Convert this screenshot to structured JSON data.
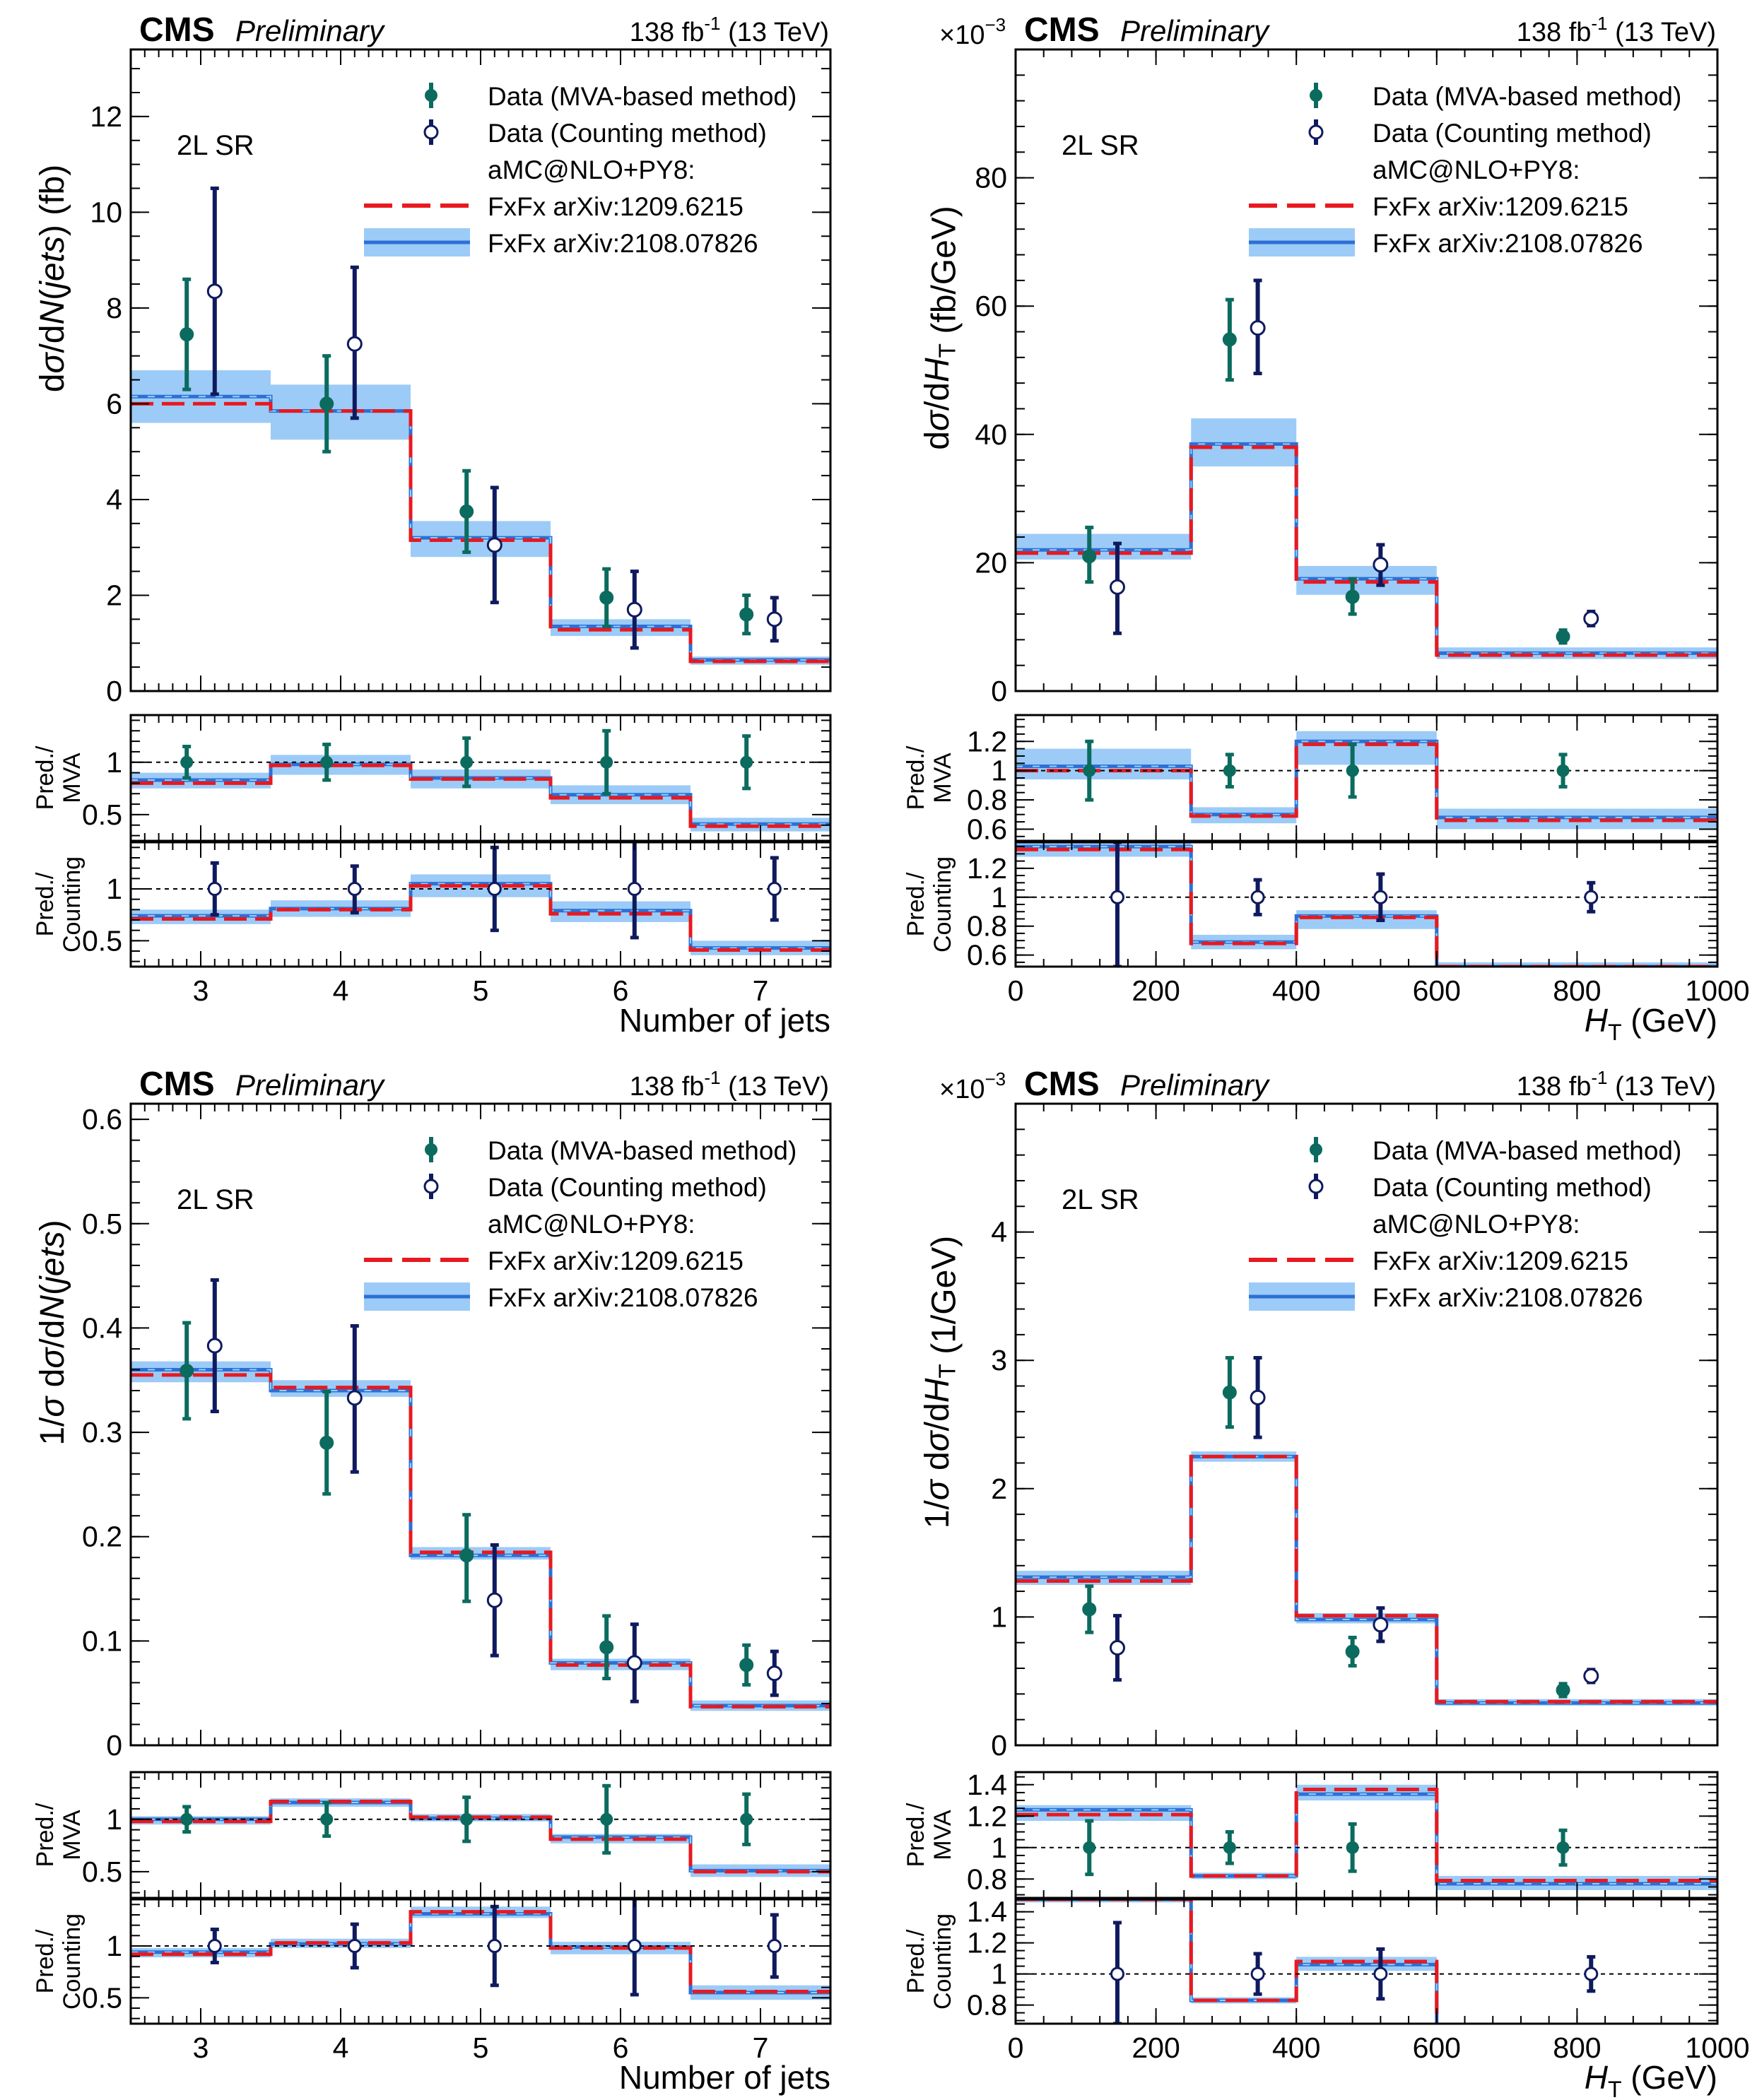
{
  "header": {
    "cms": "CMS",
    "preliminary": "Preliminary",
    "lumi": "138 fb",
    "lumi_sup": "-1",
    "energy": " (13 TeV)",
    "region": "2L SR"
  },
  "legend": {
    "data_mva": "Data (MVA-based method)",
    "data_counting": "Data (Counting method)",
    "generator": "aMC@NLO+PY8:",
    "pred1": "FxFx arXiv:1209.6215",
    "pred2": "FxFx arXiv:2108.07826"
  },
  "ratio_labels": {
    "pred": "Pred./",
    "mva": "MVA",
    "counting": "Counting"
  },
  "colors": {
    "mva": "#0b6b5e",
    "counting": "#0f1a5e",
    "pred1": "#e8191f",
    "pred2": "#2d6fd4",
    "band": "#9ccbf7"
  },
  "chart_data": [
    {
      "type": "histogram-with-ratios",
      "xlabel": "Number of jets",
      "ylabel": "dσ/dN(jets) (fb)",
      "ymult": "",
      "xlim": [
        2.5,
        7.5
      ],
      "ylim": [
        0,
        13.4
      ],
      "xticks": [
        "3",
        "4",
        "5",
        "6",
        "7"
      ],
      "yticks": [
        "0",
        "2",
        "4",
        "6",
        "8",
        "10",
        "12"
      ],
      "bin_edges": [
        2.5,
        3.5,
        4.5,
        5.5,
        6.5,
        7.5
      ],
      "pred1": [
        6.0,
        5.85,
        3.15,
        1.28,
        0.62
      ],
      "pred2": [
        6.15,
        5.85,
        3.2,
        1.35,
        0.65
      ],
      "band": [
        [
          5.6,
          6.7
        ],
        [
          5.25,
          6.4
        ],
        [
          2.8,
          3.55
        ],
        [
          1.15,
          1.5
        ],
        [
          0.55,
          0.72
        ]
      ],
      "data_mva": {
        "x": [
          2.9,
          3.9,
          4.9,
          5.9,
          6.9
        ],
        "y": [
          7.45,
          6.0,
          3.75,
          1.95,
          1.6
        ],
        "lo": [
          6.3,
          5.0,
          2.9,
          1.35,
          1.2
        ],
        "hi": [
          8.6,
          7.0,
          4.6,
          2.55,
          2.0
        ]
      },
      "data_counting": {
        "x": [
          3.1,
          4.1,
          5.1,
          6.1,
          7.1
        ],
        "y": [
          8.35,
          7.25,
          3.05,
          1.7,
          1.5
        ],
        "lo": [
          6.2,
          5.7,
          1.85,
          0.9,
          1.05
        ],
        "hi": [
          10.5,
          8.85,
          4.25,
          2.5,
          1.95
        ]
      },
      "ratio_mva": {
        "ylim": [
          0.25,
          1.45
        ],
        "yticks": [
          "0.5",
          "1"
        ],
        "pred1": [
          0.8,
          0.97,
          0.84,
          0.66,
          0.39
        ],
        "pred2": [
          0.83,
          0.98,
          0.85,
          0.69,
          0.41
        ],
        "band": [
          [
            0.75,
            0.9
          ],
          [
            0.88,
            1.07
          ],
          [
            0.75,
            0.93
          ],
          [
            0.6,
            0.78
          ],
          [
            0.34,
            0.47
          ]
        ],
        "data": {
          "x": [
            2.9,
            3.9,
            4.9,
            5.9,
            6.9
          ],
          "lo": [
            0.85,
            0.83,
            0.77,
            0.7,
            0.75
          ],
          "hi": [
            1.15,
            1.17,
            1.23,
            1.3,
            1.25
          ]
        }
      },
      "ratio_counting": {
        "ylim": [
          0.25,
          1.45
        ],
        "yticks": [
          "0.5",
          "1"
        ],
        "pred1": [
          0.71,
          0.8,
          1.03,
          0.76,
          0.41
        ],
        "pred2": [
          0.74,
          0.81,
          1.05,
          0.79,
          0.43
        ],
        "band": [
          [
            0.66,
            0.8
          ],
          [
            0.73,
            0.89
          ],
          [
            0.92,
            1.14
          ],
          [
            0.68,
            0.88
          ],
          [
            0.36,
            0.5
          ]
        ],
        "data": {
          "x": [
            3.1,
            4.1,
            5.1,
            6.1,
            7.1
          ],
          "lo": [
            0.75,
            0.77,
            0.6,
            0.53,
            0.7
          ],
          "hi": [
            1.25,
            1.22,
            1.4,
            1.47,
            1.3
          ]
        }
      }
    },
    {
      "type": "histogram-with-ratios",
      "xlabel": "H_T (GeV)",
      "ylabel": "dσ/dH_T (fb/GeV)",
      "ymult": "×10⁻³",
      "xlim": [
        0,
        1000
      ],
      "ylim": [
        0,
        100
      ],
      "xticks": [
        "0",
        "200",
        "400",
        "600",
        "800",
        "1000"
      ],
      "yticks": [
        "0",
        "20",
        "40",
        "60",
        "80"
      ],
      "bin_edges": [
        0,
        250,
        400,
        600,
        1000
      ],
      "pred1": [
        21.5,
        38.0,
        17.0,
        5.6
      ],
      "pred2": [
        22.0,
        38.5,
        17.5,
        5.9
      ],
      "band": [
        [
          20.5,
          24.5
        ],
        [
          35.0,
          42.5
        ],
        [
          15.0,
          19.5
        ],
        [
          5.0,
          6.8
        ]
      ],
      "data_mva": {
        "x": [
          105,
          305,
          480,
          780
        ],
        "y": [
          21.0,
          54.8,
          14.7,
          8.5
        ],
        "lo": [
          17.0,
          48.5,
          12.0,
          7.5
        ],
        "hi": [
          25.5,
          61.0,
          17.5,
          9.5
        ]
      },
      "data_counting": {
        "x": [
          145,
          345,
          520,
          820
        ],
        "y": [
          16.2,
          56.6,
          19.7,
          11.3
        ],
        "lo": [
          9.0,
          49.5,
          16.5,
          10.2
        ],
        "hi": [
          23.0,
          64.0,
          22.8,
          12.4
        ]
      },
      "ratio_mva": {
        "ylim": [
          0.52,
          1.38
        ],
        "yticks": [
          "0.6",
          "0.8",
          "1",
          "1.2"
        ],
        "pred1": [
          1.0,
          0.69,
          1.18,
          0.66
        ],
        "pred2": [
          1.03,
          0.7,
          1.2,
          0.68
        ],
        "band": [
          [
            0.94,
            1.15
          ],
          [
            0.64,
            0.75
          ],
          [
            1.04,
            1.27
          ],
          [
            0.6,
            0.74
          ]
        ],
        "data": {
          "x": [
            105,
            305,
            480,
            780
          ],
          "lo": [
            0.8,
            0.89,
            0.82,
            0.89
          ],
          "hi": [
            1.2,
            1.11,
            1.18,
            1.11
          ]
        }
      },
      "ratio_counting": {
        "ylim": [
          0.52,
          1.38
        ],
        "yticks": [
          "0.6",
          "0.8",
          "1",
          "1.2"
        ],
        "pred1": [
          1.33,
          0.68,
          0.86,
          0.52
        ],
        "pred2": [
          1.35,
          0.69,
          0.87,
          0.52
        ],
        "band": [
          [
            1.28,
            1.38
          ],
          [
            0.64,
            0.74
          ],
          [
            0.78,
            0.91
          ],
          [
            0.52,
            0.55
          ]
        ],
        "data": {
          "x": [
            145,
            345,
            520,
            820
          ],
          "lo": [
            0.52,
            0.88,
            0.84,
            0.9
          ],
          "hi": [
            1.38,
            1.12,
            1.16,
            1.1
          ]
        }
      }
    },
    {
      "type": "histogram-with-ratios",
      "xlabel": "Number of jets",
      "ylabel": "1/σ dσ/dN(jets)",
      "ymult": "",
      "xlim": [
        2.5,
        7.5
      ],
      "ylim": [
        0,
        0.615
      ],
      "xticks": [
        "3",
        "4",
        "5",
        "6",
        "7"
      ],
      "yticks": [
        "0",
        "0.1",
        "0.2",
        "0.3",
        "0.4",
        "0.5",
        "0.6"
      ],
      "bin_edges": [
        2.5,
        3.5,
        4.5,
        5.5,
        6.5,
        7.5
      ],
      "pred1": [
        0.355,
        0.343,
        0.185,
        0.077,
        0.037
      ],
      "pred2": [
        0.36,
        0.34,
        0.182,
        0.079,
        0.038
      ],
      "band": [
        [
          0.348,
          0.368
        ],
        [
          0.334,
          0.35
        ],
        [
          0.178,
          0.19
        ],
        [
          0.072,
          0.083
        ],
        [
          0.033,
          0.043
        ]
      ],
      "data_mva": {
        "x": [
          2.9,
          3.9,
          4.9,
          5.9,
          6.9
        ],
        "y": [
          0.359,
          0.29,
          0.182,
          0.094,
          0.077
        ],
        "lo": [
          0.313,
          0.241,
          0.138,
          0.064,
          0.058
        ],
        "hi": [
          0.405,
          0.339,
          0.221,
          0.124,
          0.096
        ]
      },
      "data_counting": {
        "x": [
          3.1,
          4.1,
          5.1,
          6.1,
          7.1
        ],
        "y": [
          0.383,
          0.333,
          0.139,
          0.079,
          0.069
        ],
        "lo": [
          0.32,
          0.262,
          0.086,
          0.042,
          0.048
        ],
        "hi": [
          0.446,
          0.402,
          0.192,
          0.116,
          0.09
        ]
      },
      "ratio_mva": {
        "ylim": [
          0.25,
          1.45
        ],
        "yticks": [
          "0.5",
          "1"
        ],
        "pred1": [
          0.98,
          1.17,
          1.02,
          0.81,
          0.5
        ],
        "pred2": [
          1.0,
          1.16,
          1.01,
          0.83,
          0.51
        ],
        "band": [
          [
            0.95,
            1.03
          ],
          [
            1.12,
            1.2
          ],
          [
            0.98,
            1.05
          ],
          [
            0.77,
            0.86
          ],
          [
            0.45,
            0.57
          ]
        ],
        "data": {
          "x": [
            2.9,
            3.9,
            4.9,
            5.9,
            6.9
          ],
          "lo": [
            0.88,
            0.84,
            0.79,
            0.68,
            0.76
          ],
          "hi": [
            1.12,
            1.16,
            1.21,
            1.32,
            1.24
          ]
        }
      },
      "ratio_counting": {
        "ylim": [
          0.25,
          1.45
        ],
        "yticks": [
          "0.5",
          "1"
        ],
        "pred1": [
          0.92,
          1.03,
          1.33,
          0.98,
          0.56
        ],
        "pred2": [
          0.94,
          1.02,
          1.31,
          0.99,
          0.55
        ],
        "band": [
          [
            0.89,
            0.98
          ],
          [
            0.98,
            1.07
          ],
          [
            1.27,
            1.38
          ],
          [
            0.92,
            1.04
          ],
          [
            0.48,
            0.62
          ]
        ],
        "data": {
          "x": [
            3.1,
            4.1,
            5.1,
            6.1,
            7.1
          ],
          "lo": [
            0.84,
            0.79,
            0.62,
            0.53,
            0.7
          ],
          "hi": [
            1.16,
            1.21,
            1.38,
            1.47,
            1.3
          ]
        }
      }
    },
    {
      "type": "histogram-with-ratios",
      "xlabel": "H_T (GeV)",
      "ylabel": "1/σ dσ/dH_T (1/GeV)",
      "ymult": "×10⁻³",
      "xlim": [
        0,
        1000
      ],
      "ylim": [
        0,
        5.0
      ],
      "xticks": [
        "0",
        "200",
        "400",
        "600",
        "800",
        "1000"
      ],
      "yticks": [
        "0",
        "1",
        "2",
        "3",
        "4"
      ],
      "bin_edges": [
        0,
        250,
        400,
        600,
        1000
      ],
      "pred1": [
        1.28,
        2.25,
        1.01,
        0.34
      ],
      "pred2": [
        1.31,
        2.25,
        0.98,
        0.33
      ],
      "band": [
        [
          1.25,
          1.36
        ],
        [
          2.21,
          2.29
        ],
        [
          0.95,
          1.03
        ],
        [
          0.31,
          0.36
        ]
      ],
      "data_mva": {
        "x": [
          105,
          305,
          480,
          780
        ],
        "y": [
          1.06,
          2.75,
          0.73,
          0.43
        ],
        "lo": [
          0.88,
          2.48,
          0.62,
          0.38
        ],
        "hi": [
          1.24,
          3.02,
          0.84,
          0.48
        ]
      },
      "data_counting": {
        "x": [
          145,
          345,
          520,
          820
        ],
        "y": [
          0.76,
          2.71,
          0.94,
          0.54
        ],
        "lo": [
          0.51,
          2.4,
          0.81,
          0.49
        ],
        "hi": [
          1.01,
          3.02,
          1.07,
          0.59
        ]
      },
      "ratio_mva": {
        "ylim": [
          0.68,
          1.48
        ],
        "yticks": [
          "0.8",
          "1",
          "1.2",
          "1.4"
        ],
        "pred1": [
          1.21,
          0.82,
          1.37,
          0.79
        ],
        "pred2": [
          1.24,
          0.82,
          1.34,
          0.77
        ],
        "band": [
          [
            1.17,
            1.27
          ],
          [
            0.8,
            0.84
          ],
          [
            1.3,
            1.4
          ],
          [
            0.73,
            0.82
          ]
        ],
        "data": {
          "x": [
            105,
            305,
            480,
            780
          ],
          "lo": [
            0.83,
            0.9,
            0.85,
            0.89
          ],
          "hi": [
            1.17,
            1.1,
            1.15,
            1.11
          ]
        }
      },
      "ratio_counting": {
        "ylim": [
          0.68,
          1.48
        ],
        "yticks": [
          "0.8",
          "1",
          "1.2",
          "1.4"
        ],
        "pred1": [
          1.48,
          0.83,
          1.08,
          0.64
        ],
        "pred2": [
          1.48,
          0.83,
          1.06,
          0.64
        ],
        "band": [
          [
            1.46,
            1.48
          ],
          [
            0.81,
            0.85
          ],
          [
            1.02,
            1.11
          ],
          [
            0.6,
            0.68
          ]
        ],
        "data": {
          "x": [
            145,
            345,
            520,
            820
          ],
          "lo": [
            0.68,
            0.87,
            0.84,
            0.89
          ],
          "hi": [
            1.33,
            1.13,
            1.16,
            1.11
          ]
        }
      }
    }
  ]
}
